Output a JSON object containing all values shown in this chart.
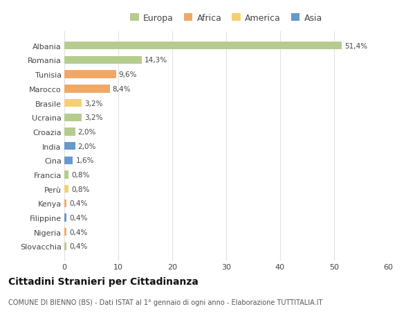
{
  "categories": [
    "Albania",
    "Romania",
    "Tunisia",
    "Marocco",
    "Brasile",
    "Ucraina",
    "Croazia",
    "India",
    "Cina",
    "Francia",
    "Perù",
    "Kenya",
    "Filippine",
    "Nigeria",
    "Slovacchia"
  ],
  "values": [
    51.4,
    14.3,
    9.6,
    8.4,
    3.2,
    3.2,
    2.0,
    2.0,
    1.6,
    0.8,
    0.8,
    0.4,
    0.4,
    0.4,
    0.4
  ],
  "labels": [
    "51,4%",
    "14,3%",
    "9,6%",
    "8,4%",
    "3,2%",
    "3,2%",
    "2,0%",
    "2,0%",
    "1,6%",
    "0,8%",
    "0,8%",
    "0,4%",
    "0,4%",
    "0,4%",
    "0,4%"
  ],
  "continents": [
    "Europa",
    "Europa",
    "Africa",
    "Africa",
    "America",
    "Europa",
    "Europa",
    "Asia",
    "Asia",
    "Europa",
    "America",
    "Africa",
    "Asia",
    "Africa",
    "Europa"
  ],
  "continent_colors": {
    "Europa": "#b5cc8e",
    "Africa": "#f0a868",
    "America": "#f5d06e",
    "Asia": "#6699cc"
  },
  "legend_order": [
    "Europa",
    "Africa",
    "America",
    "Asia"
  ],
  "bg_color": "#ffffff",
  "grid_color": "#e0e0e0",
  "title": "Cittadini Stranieri per Cittadinanza",
  "subtitle": "COMUNE DI BIENNO (BS) - Dati ISTAT al 1° gennaio di ogni anno - Elaborazione TUTTITALIA.IT",
  "xlim": [
    0,
    60
  ],
  "xticks": [
    0,
    10,
    20,
    30,
    40,
    50,
    60
  ]
}
